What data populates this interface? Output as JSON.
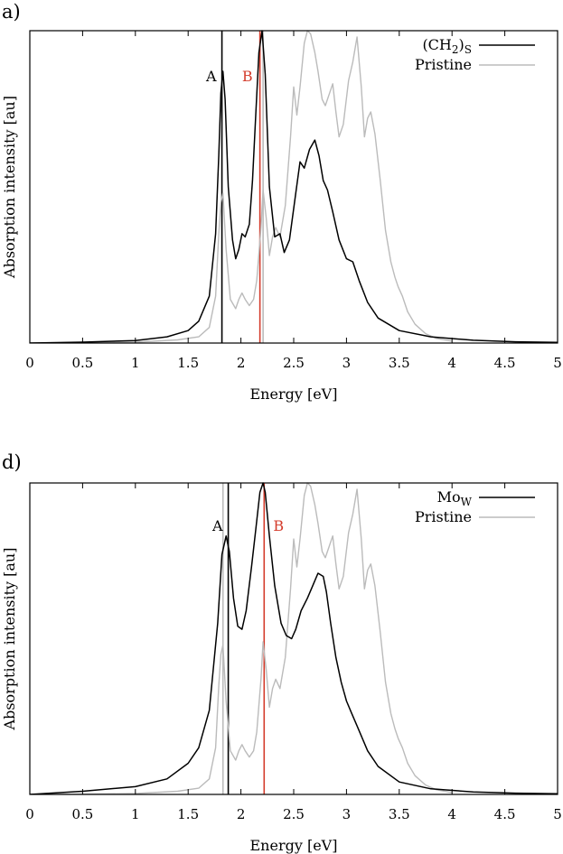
{
  "chart_data": [
    {
      "type": "line",
      "panel_label": "a)",
      "xlabel": "Energy [eV]",
      "ylabel": "Absorption intensity [au]",
      "xlim": [
        0,
        5
      ],
      "ylim": [
        0,
        1
      ],
      "x_ticks": [
        "0",
        "0.5",
        "1",
        "1.5",
        "2",
        "2.5",
        "3",
        "3.5",
        "4",
        "4.5",
        "5"
      ],
      "y_ticks": [],
      "legend_position": "top-right",
      "series": [
        {
          "name": "(CH2)S",
          "label_main": "(CH",
          "label_sub": "2",
          "label_close": ")",
          "label_sub2": "S",
          "color": "#000000",
          "x": [
            0,
            0.5,
            1,
            1.3,
            1.5,
            1.6,
            1.7,
            1.76,
            1.79,
            1.81,
            1.83,
            1.85,
            1.88,
            1.92,
            1.95,
            1.98,
            2.01,
            2.04,
            2.08,
            2.11,
            2.14,
            2.17,
            2.2,
            2.23,
            2.27,
            2.32,
            2.37,
            2.41,
            2.46,
            2.52,
            2.56,
            2.6,
            2.65,
            2.7,
            2.74,
            2.78,
            2.82,
            2.87,
            2.93,
            3.0,
            3.06,
            3.12,
            3.2,
            3.3,
            3.5,
            3.8,
            4.2,
            4.6,
            5.0
          ],
          "y": [
            0.0,
            0.003,
            0.008,
            0.02,
            0.04,
            0.07,
            0.15,
            0.35,
            0.6,
            0.8,
            0.87,
            0.78,
            0.5,
            0.33,
            0.27,
            0.3,
            0.35,
            0.34,
            0.38,
            0.52,
            0.73,
            0.93,
            1.0,
            0.86,
            0.5,
            0.34,
            0.35,
            0.29,
            0.33,
            0.48,
            0.58,
            0.56,
            0.62,
            0.65,
            0.6,
            0.52,
            0.49,
            0.42,
            0.33,
            0.27,
            0.26,
            0.2,
            0.13,
            0.08,
            0.04,
            0.02,
            0.009,
            0.004,
            0.002
          ]
        },
        {
          "name": "Pristine",
          "color": "#bbbbbb",
          "x": [
            0,
            0.5,
            1,
            1.4,
            1.6,
            1.7,
            1.76,
            1.79,
            1.81,
            1.83,
            1.86,
            1.9,
            1.95,
            1.98,
            2.01,
            2.04,
            2.08,
            2.12,
            2.15,
            2.19,
            2.21,
            2.24,
            2.27,
            2.3,
            2.33,
            2.37,
            2.42,
            2.47,
            2.5,
            2.53,
            2.56,
            2.6,
            2.63,
            2.66,
            2.7,
            2.73,
            2.77,
            2.8,
            2.83,
            2.87,
            2.9,
            2.93,
            2.97,
            3.02,
            3.06,
            3.1,
            3.14,
            3.17,
            3.2,
            3.23,
            3.27,
            3.32,
            3.37,
            3.42,
            3.46,
            3.49,
            3.53,
            3.58,
            3.65,
            3.75,
            3.85,
            4.0
          ],
          "y": [
            0.0,
            0.001,
            0.003,
            0.01,
            0.02,
            0.05,
            0.15,
            0.35,
            0.45,
            0.48,
            0.3,
            0.14,
            0.11,
            0.14,
            0.16,
            0.14,
            0.12,
            0.14,
            0.2,
            0.37,
            0.49,
            0.4,
            0.28,
            0.34,
            0.37,
            0.34,
            0.44,
            0.66,
            0.82,
            0.73,
            0.82,
            0.96,
            1.0,
            0.99,
            0.93,
            0.87,
            0.78,
            0.76,
            0.79,
            0.83,
            0.74,
            0.66,
            0.7,
            0.84,
            0.9,
            0.98,
            0.82,
            0.66,
            0.72,
            0.74,
            0.67,
            0.52,
            0.36,
            0.26,
            0.21,
            0.18,
            0.15,
            0.1,
            0.06,
            0.03,
            0.015,
            0.006
          ]
        }
      ],
      "vertical_lines": [
        {
          "x": 1.82,
          "color": "#000000",
          "label": "A",
          "label_color": "#000000"
        },
        {
          "x": 2.18,
          "color": "#d43c2c",
          "label": "B",
          "label_color": "#d43c2c"
        },
        {
          "x": 2.21,
          "color": "#bbbbbb",
          "label": "",
          "label_color": "#bbbbbb"
        }
      ]
    },
    {
      "type": "line",
      "panel_label": "d)",
      "xlabel": "Energy [eV]",
      "ylabel": "Absorption intensity [au]",
      "xlim": [
        0,
        5
      ],
      "ylim": [
        0,
        1
      ],
      "x_ticks": [
        "0",
        "0.5",
        "1",
        "1.5",
        "2",
        "2.5",
        "3",
        "3.5",
        "4",
        "4.5",
        "5"
      ],
      "y_ticks": [],
      "legend_position": "top-right",
      "series": [
        {
          "name": "MoW",
          "label_main": "Mo",
          "label_sub": "W",
          "label_close": "",
          "label_sub2": "",
          "color": "#000000",
          "x": [
            0,
            0.5,
            1,
            1.3,
            1.5,
            1.6,
            1.7,
            1.78,
            1.82,
            1.86,
            1.89,
            1.93,
            1.97,
            2.01,
            2.05,
            2.1,
            2.14,
            2.18,
            2.21,
            2.23,
            2.27,
            2.32,
            2.38,
            2.43,
            2.48,
            2.52,
            2.57,
            2.63,
            2.68,
            2.73,
            2.78,
            2.81,
            2.85,
            2.9,
            2.95,
            3.0,
            3.05,
            3.1,
            3.2,
            3.3,
            3.5,
            3.8,
            4.2,
            4.6,
            5.0
          ],
          "y": [
            0.0,
            0.01,
            0.025,
            0.05,
            0.1,
            0.15,
            0.27,
            0.55,
            0.77,
            0.83,
            0.78,
            0.63,
            0.54,
            0.53,
            0.59,
            0.73,
            0.85,
            0.97,
            1.0,
            0.97,
            0.83,
            0.67,
            0.55,
            0.51,
            0.5,
            0.53,
            0.59,
            0.63,
            0.67,
            0.71,
            0.7,
            0.65,
            0.55,
            0.44,
            0.36,
            0.3,
            0.26,
            0.22,
            0.14,
            0.09,
            0.04,
            0.018,
            0.008,
            0.004,
            0.002
          ]
        },
        {
          "name": "Pristine",
          "color": "#bbbbbb",
          "x": [
            0,
            0.5,
            1,
            1.4,
            1.6,
            1.7,
            1.76,
            1.79,
            1.81,
            1.83,
            1.86,
            1.9,
            1.95,
            1.98,
            2.01,
            2.04,
            2.08,
            2.12,
            2.15,
            2.19,
            2.21,
            2.24,
            2.27,
            2.3,
            2.33,
            2.37,
            2.42,
            2.47,
            2.5,
            2.53,
            2.56,
            2.6,
            2.63,
            2.66,
            2.7,
            2.73,
            2.77,
            2.8,
            2.83,
            2.87,
            2.9,
            2.93,
            2.97,
            3.02,
            3.06,
            3.1,
            3.14,
            3.17,
            3.2,
            3.23,
            3.27,
            3.32,
            3.37,
            3.42,
            3.46,
            3.49,
            3.53,
            3.58,
            3.65,
            3.75,
            3.85,
            4.0
          ],
          "y": [
            0.0,
            0.001,
            0.003,
            0.01,
            0.02,
            0.05,
            0.15,
            0.35,
            0.45,
            0.48,
            0.3,
            0.14,
            0.11,
            0.14,
            0.16,
            0.14,
            0.12,
            0.14,
            0.2,
            0.37,
            0.49,
            0.4,
            0.28,
            0.34,
            0.37,
            0.34,
            0.44,
            0.66,
            0.82,
            0.73,
            0.82,
            0.96,
            1.0,
            0.99,
            0.93,
            0.87,
            0.78,
            0.76,
            0.79,
            0.83,
            0.74,
            0.66,
            0.7,
            0.84,
            0.9,
            0.98,
            0.82,
            0.66,
            0.72,
            0.74,
            0.67,
            0.52,
            0.36,
            0.26,
            0.21,
            0.18,
            0.15,
            0.1,
            0.06,
            0.03,
            0.015,
            0.006
          ]
        }
      ],
      "vertical_lines": [
        {
          "x": 1.88,
          "color": "#000000",
          "label": "A",
          "label_color": "#000000"
        },
        {
          "x": 2.22,
          "color": "#d43c2c",
          "label": "B",
          "label_color": "#d43c2c"
        },
        {
          "x": 1.83,
          "color": "#bbbbbb",
          "label": "",
          "label_color": "#bbbbbb"
        }
      ]
    }
  ]
}
